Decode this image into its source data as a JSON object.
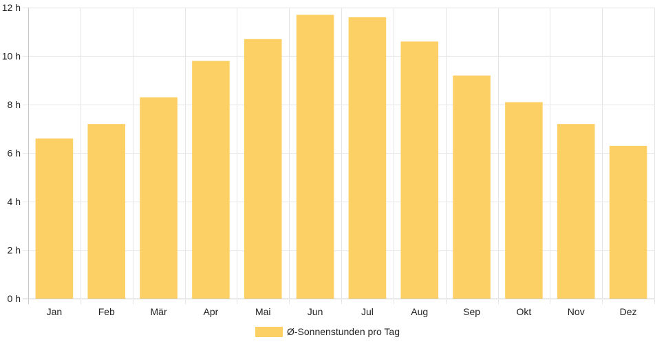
{
  "chart_data": {
    "type": "bar",
    "categories": [
      "Jan",
      "Feb",
      "Mär",
      "Apr",
      "Mai",
      "Jun",
      "Jul",
      "Aug",
      "Sep",
      "Okt",
      "Nov",
      "Dez"
    ],
    "series": [
      {
        "name": "Ø-Sonnenstunden pro Tag",
        "values": [
          6.6,
          7.2,
          8.3,
          9.8,
          10.7,
          11.7,
          11.6,
          10.6,
          9.2,
          8.1,
          7.2,
          6.3
        ]
      }
    ],
    "ylim": [
      0,
      12
    ],
    "yticks": [
      0,
      2,
      4,
      6,
      8,
      10,
      12
    ],
    "ytick_labels": [
      "0 h",
      "2 h",
      "4 h",
      "6 h",
      "8 h",
      "10 h",
      "12 h"
    ],
    "grid": true,
    "legend_position": "bottom",
    "colors": {
      "bar": "#fdd066",
      "grid": "#e5e5e5",
      "axis": "#c8c8c8",
      "text": "#222222"
    }
  }
}
